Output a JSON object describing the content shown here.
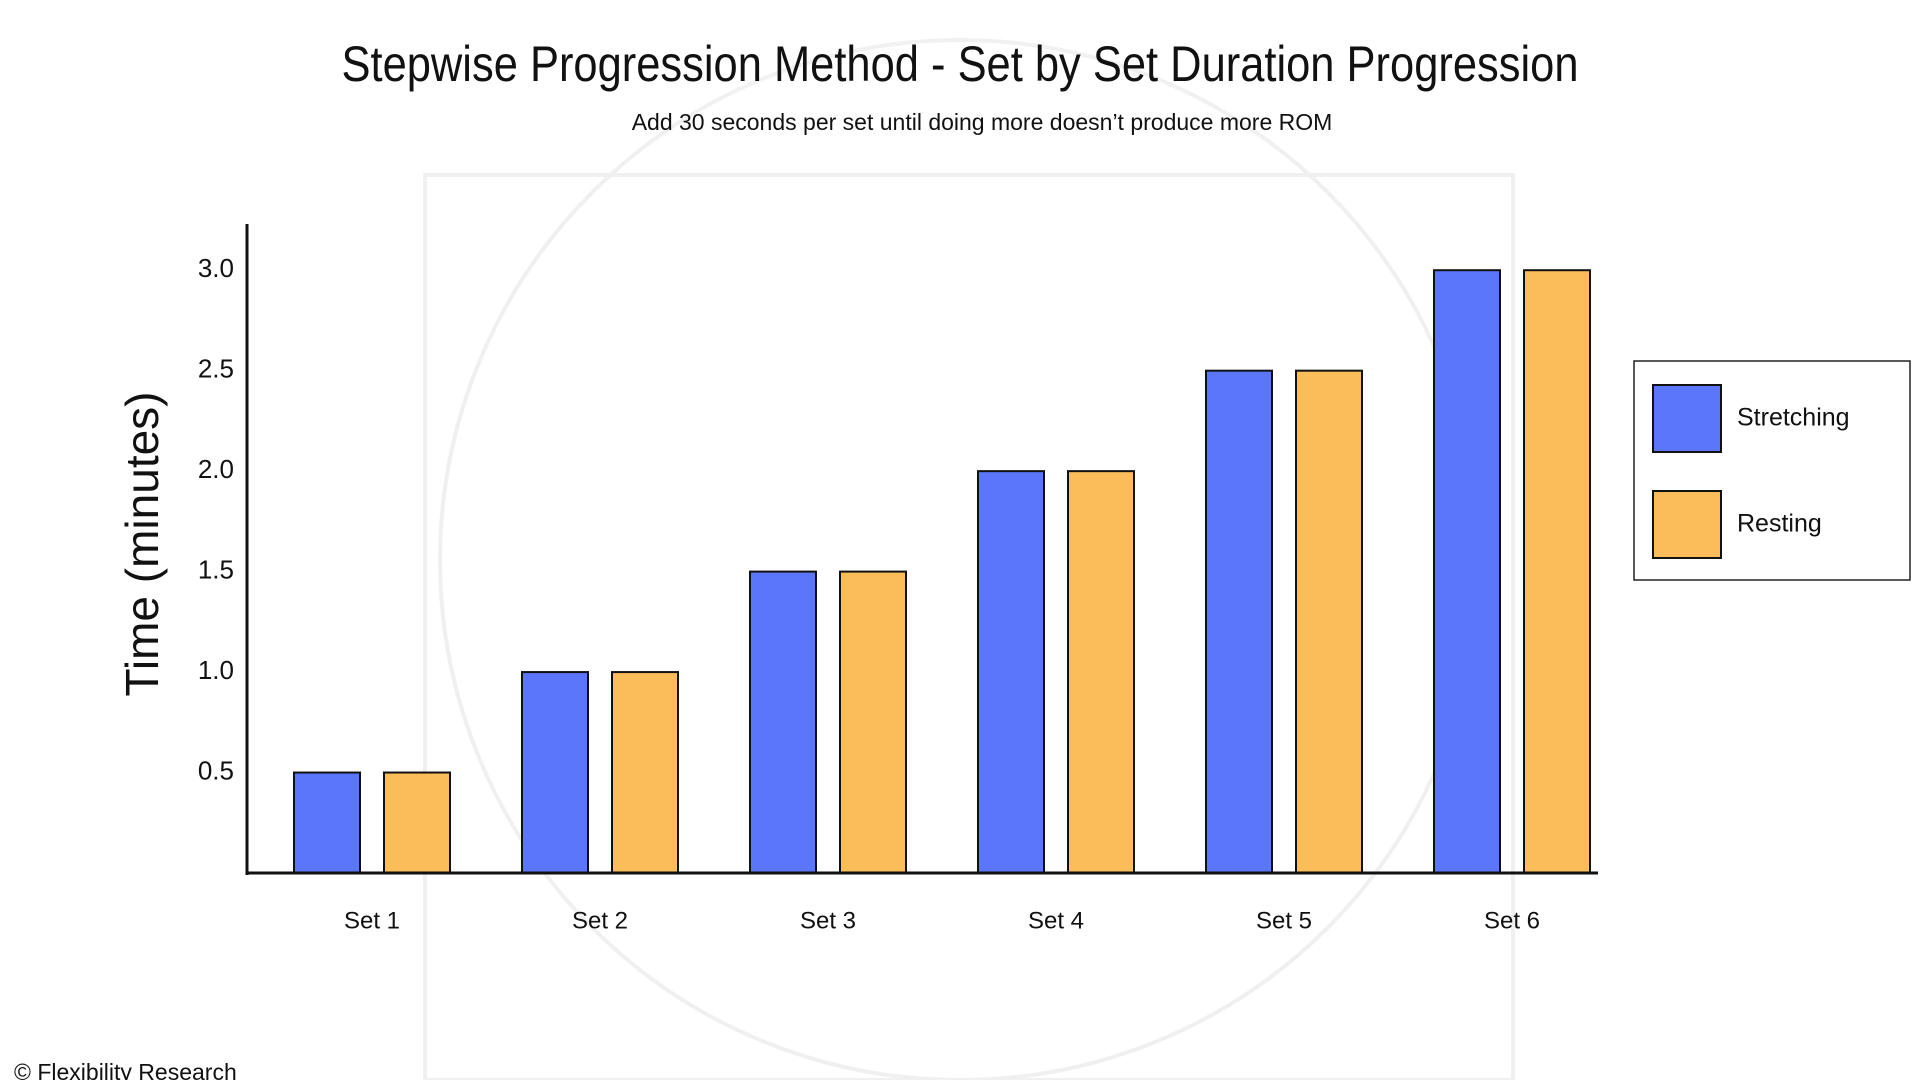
{
  "chart_data": {
    "type": "bar",
    "title": "Stepwise Progression Method - Set by Set Duration Progression",
    "subtitle": "Add 30 seconds per set until doing more doesn’t produce more ROM",
    "y_label": "Time (minutes)",
    "categories": [
      "Set 1",
      "Set 2",
      "Set 3",
      "Set 4",
      "Set 5",
      "Set 6"
    ],
    "series": [
      {
        "name": "Stretching",
        "color": "#5b76fb",
        "values": [
          0.5,
          1,
          1.5,
          2,
          2.5,
          3
        ]
      },
      {
        "name": "Resting",
        "color": "#fbbd5a",
        "values": [
          0.5,
          1,
          1.5,
          2,
          2.5,
          3
        ]
      }
    ],
    "ylim": [
      0,
      3.23
    ],
    "yticks": [
      0.5,
      {
        "value": 1,
        "label": "1.0"
      },
      1.5,
      {
        "value": 2,
        "label": "2.0"
      },
      2.5,
      {
        "value": 3,
        "label": "3.0"
      }
    ],
    "legend": "right",
    "footer": "© Flexibility Research"
  }
}
